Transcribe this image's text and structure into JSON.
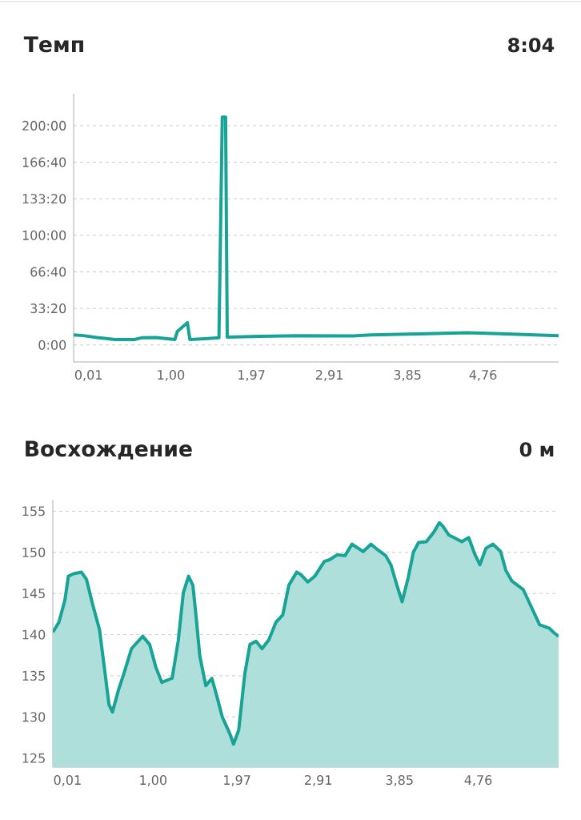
{
  "chart_data": [
    {
      "type": "line",
      "title": "Темп",
      "annotations": [
        "8:04"
      ],
      "color": "#17a396",
      "x": [
        -0.17,
        -0.05,
        0.11,
        0.33,
        0.56,
        0.65,
        0.82,
        1.05,
        1.08,
        1.2,
        1.23,
        1.45,
        1.58,
        1.62,
        1.66,
        1.68,
        2.07,
        2.52,
        3.19,
        3.41,
        4.08,
        4.57,
        4.97,
        5.67
      ],
      "values": [
        550,
        510,
        410,
        300,
        300,
        390,
        410,
        300,
        750,
        1220,
        300,
        350,
        390,
        12470,
        12470,
        430,
        470,
        510,
        490,
        550,
        610,
        670,
        610,
        510
      ],
      "xlim": [
        -0.17,
        5.67
      ],
      "ylim": [
        -930,
        13750
      ],
      "xticks": [
        {
          "value": 0.01,
          "label": "0,01"
        },
        {
          "value": 1.0,
          "label": "1,00"
        },
        {
          "value": 1.97,
          "label": "1,97"
        },
        {
          "value": 2.91,
          "label": "2,91"
        },
        {
          "value": 3.85,
          "label": "3,85"
        },
        {
          "value": 4.76,
          "label": "4,76"
        }
      ],
      "yticks": [
        {
          "value": 0,
          "label": "0:00"
        },
        {
          "value": 2000,
          "label": "33:20"
        },
        {
          "value": 4000,
          "label": "66:40"
        },
        {
          "value": 6000,
          "label": "100:00"
        },
        {
          "value": 8000,
          "label": "133:20"
        },
        {
          "value": 10000,
          "label": "166:40"
        },
        {
          "value": 12000,
          "label": "200:00"
        }
      ],
      "grid": "y"
    },
    {
      "type": "area",
      "title": "Восхождение",
      "annotations": [
        "0 м"
      ],
      "color": "#17a396",
      "x": [
        -0.16,
        -0.09,
        -0.02,
        0.02,
        0.08,
        0.17,
        0.23,
        0.3,
        0.38,
        0.43,
        0.49,
        0.53,
        0.6,
        0.66,
        0.75,
        0.88,
        0.96,
        1.03,
        1.1,
        1.22,
        1.29,
        1.35,
        1.41,
        1.46,
        1.5,
        1.54,
        1.61,
        1.68,
        1.74,
        1.8,
        1.89,
        1.93,
        1.99,
        2.06,
        2.12,
        2.19,
        2.26,
        2.34,
        2.42,
        2.5,
        2.57,
        2.66,
        2.71,
        2.79,
        2.87,
        2.98,
        3.04,
        3.13,
        3.22,
        3.3,
        3.37,
        3.43,
        3.52,
        3.6,
        3.69,
        3.75,
        3.82,
        3.88,
        3.95,
        4.01,
        4.07,
        4.16,
        4.25,
        4.31,
        4.35,
        4.42,
        4.48,
        4.57,
        4.65,
        4.72,
        4.78,
        4.85,
        4.93,
        5.02,
        5.08,
        5.15,
        5.28,
        5.36,
        5.47,
        5.58,
        5.64,
        5.69
      ],
      "values": [
        140.3,
        141.5,
        144.2,
        147.1,
        147.4,
        147.6,
        146.7,
        143.7,
        140.6,
        136.5,
        131.5,
        130.6,
        133.3,
        135.2,
        138.3,
        139.8,
        138.8,
        136.1,
        134.2,
        134.7,
        139.2,
        145.1,
        147.1,
        146.0,
        141.9,
        137.4,
        133.8,
        134.7,
        132.4,
        130.0,
        127.9,
        126.7,
        128.4,
        135.2,
        138.8,
        139.2,
        138.3,
        139.4,
        141.5,
        142.4,
        146.0,
        147.6,
        147.3,
        146.4,
        147.1,
        148.9,
        149.1,
        149.7,
        149.6,
        151.0,
        150.5,
        150.1,
        151.0,
        150.3,
        149.6,
        148.5,
        146.0,
        144.0,
        146.9,
        150.0,
        151.2,
        151.3,
        152.5,
        153.6,
        153.2,
        152.1,
        151.8,
        151.3,
        151.8,
        149.8,
        148.5,
        150.5,
        151.0,
        150.1,
        147.8,
        146.5,
        145.5,
        143.7,
        141.2,
        140.8,
        140.2,
        139.8
      ],
      "xlim": [
        -0.16,
        5.69
      ],
      "ylim": [
        123.9,
        156.4
      ],
      "xticks": [
        {
          "value": 0.01,
          "label": "0,01"
        },
        {
          "value": 1.0,
          "label": "1,00"
        },
        {
          "value": 1.97,
          "label": "1,97"
        },
        {
          "value": 2.91,
          "label": "2,91"
        },
        {
          "value": 3.85,
          "label": "3,85"
        },
        {
          "value": 4.76,
          "label": "4,76"
        }
      ],
      "yticks": [
        125,
        130,
        135,
        140,
        145,
        150,
        155
      ],
      "grid": "y"
    }
  ]
}
